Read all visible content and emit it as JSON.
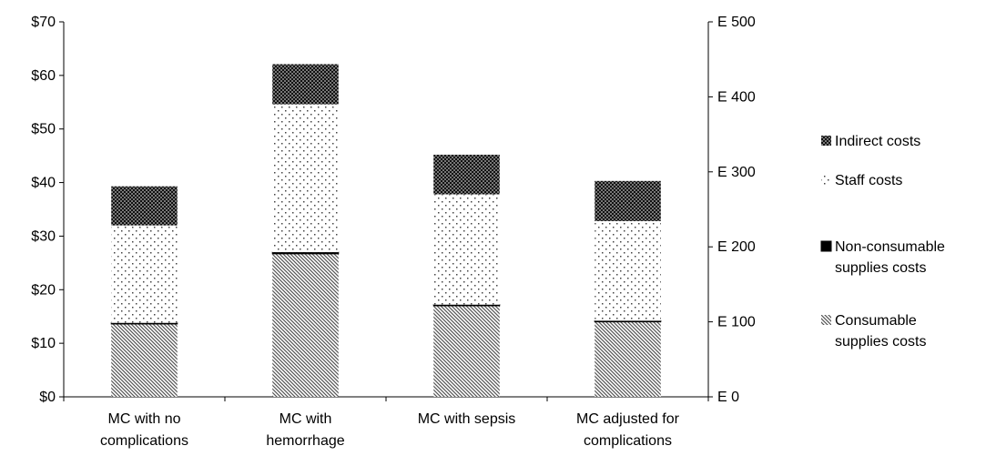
{
  "chart_data": {
    "type": "bar",
    "stacked": true,
    "categories": [
      [
        "MC with no",
        "complications"
      ],
      [
        "MC with",
        "hemorrhage"
      ],
      [
        "MC with sepsis"
      ],
      [
        "MC adjusted for",
        "complications"
      ]
    ],
    "series": [
      {
        "name": "Consumable supplies costs",
        "legend_lines": [
          "Consumable",
          "supplies costs"
        ],
        "pattern": "diagonal",
        "values": [
          13.6,
          26.7,
          17.0,
          14.0
        ]
      },
      {
        "name": "Non-consumable supplies costs",
        "legend_lines": [
          "Non-consumable",
          "supplies costs"
        ],
        "pattern": "solid",
        "values": [
          0.2,
          0.3,
          0.2,
          0.2
        ]
      },
      {
        "name": "Staff costs",
        "legend_lines": [
          "Staff costs"
        ],
        "pattern": "dots",
        "values": [
          18.2,
          27.6,
          20.6,
          18.6
        ]
      },
      {
        "name": "Indirect costs",
        "legend_lines": [
          "Indirect costs"
        ],
        "pattern": "checker",
        "values": [
          7.3,
          7.5,
          7.4,
          7.5
        ]
      }
    ],
    "y_left": {
      "min": 0,
      "max": 70,
      "step": 10,
      "tick_labels": [
        "$0",
        "$10",
        "$20",
        "$30",
        "$40",
        "$50",
        "$60",
        "$70"
      ]
    },
    "y_right": {
      "min": 0,
      "max": 500,
      "step": 100,
      "tick_labels": [
        "E 0",
        "E 100",
        "E 200",
        "E 300",
        "E 400",
        "E 500"
      ]
    },
    "grid": false,
    "legend_position": "right",
    "legend_order": [
      "Indirect costs",
      "Staff costs",
      "Non-consumable supplies costs",
      "Consumable supplies costs"
    ],
    "title": "",
    "xlabel": "",
    "ylabel": ""
  }
}
